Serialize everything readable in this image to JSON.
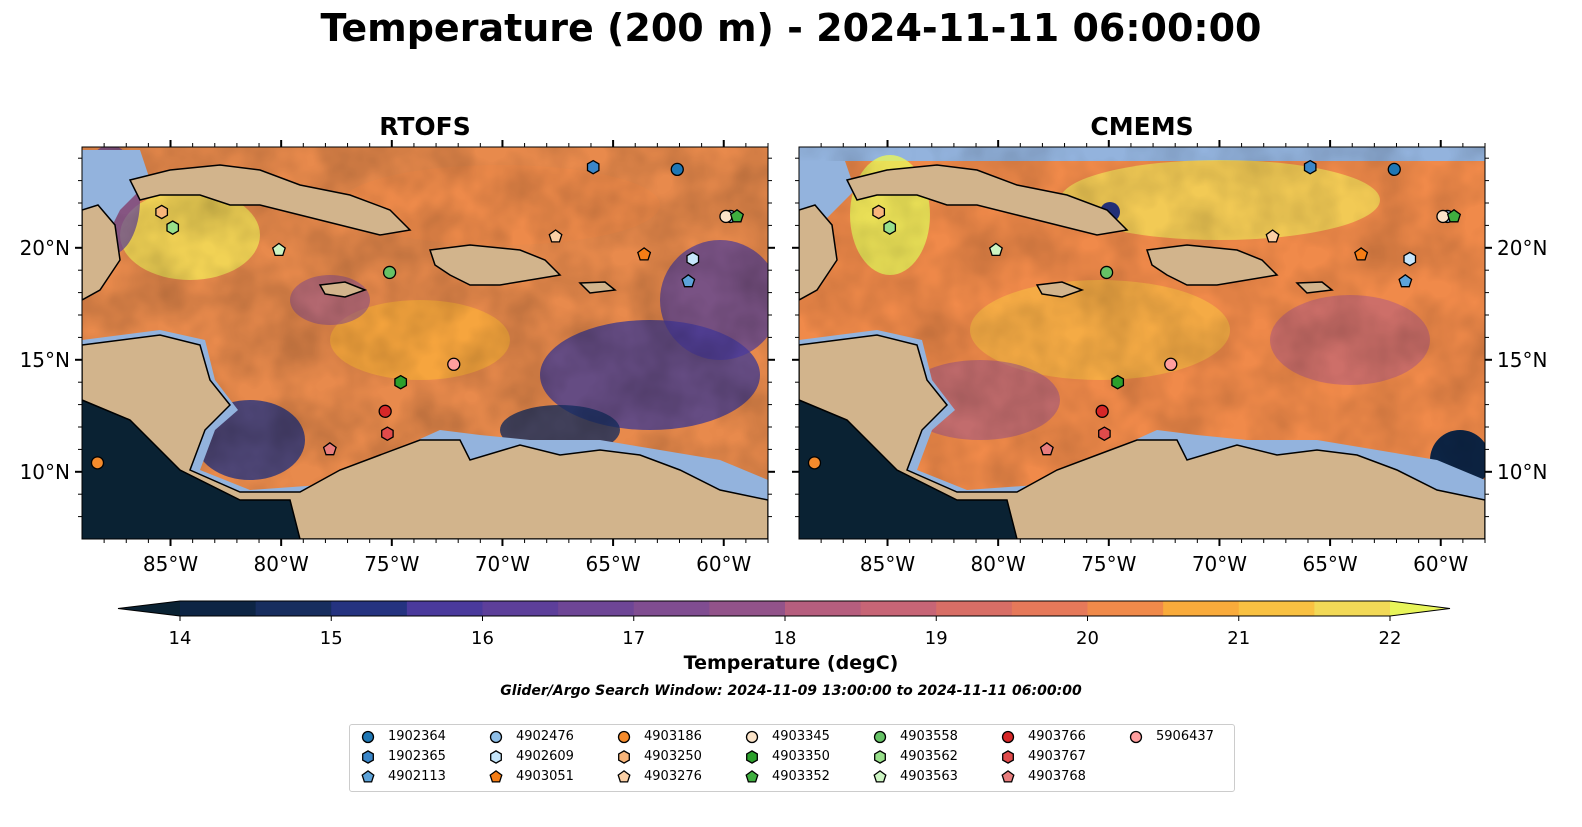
{
  "title": "Temperature (200 m) - 2024-11-11 06:00:00",
  "panels": [
    {
      "title": "RTOFS"
    },
    {
      "title": "CMEMS"
    }
  ],
  "lon_ticks": [
    "85°W",
    "80°W",
    "75°W",
    "70°W",
    "65°W",
    "60°W"
  ],
  "lat_ticks": [
    "20°N",
    "15°N",
    "10°N"
  ],
  "colorbar": {
    "label": "Temperature (degC)",
    "min": 14,
    "max": 22,
    "step": 0.5,
    "ticks": [
      "14",
      "15",
      "16",
      "17",
      "18",
      "19",
      "20",
      "21",
      "22"
    ],
    "colors": [
      "#0d2444",
      "#172d5e",
      "#253380",
      "#3a3796",
      "#4a3a9c",
      "#5d3f9a",
      "#6e4696",
      "#804d91",
      "#92538a",
      "#a45985",
      "#b65e7e",
      "#c76576",
      "#d86e66",
      "#e6795a",
      "#f08a4a",
      "#f79a40",
      "#f9ab3b",
      "#f9c142",
      "#f2d957"
    ],
    "over_color": "#e8f55a",
    "under_color": "#0a2233"
  },
  "search_window": "Glider/Argo Search Window: 2024-11-09 13:00:00 to 2024-11-11 06:00:00",
  "floats": [
    {
      "id": "1902364",
      "marker": "circle",
      "color": "#1f77b4",
      "lon": -62.1,
      "lat": 23.5
    },
    {
      "id": "1902365",
      "marker": "hexagon",
      "color": "#3a86c8",
      "lon": -65.9,
      "lat": 23.6
    },
    {
      "id": "4902113",
      "marker": "pentagon",
      "color": "#5da3d9",
      "lon": -61.6,
      "lat": 18.5
    },
    {
      "id": "4902476",
      "marker": "circle",
      "color": "#8fbfe8",
      "lon": -59.7,
      "lat": 21.4
    },
    {
      "id": "4902609",
      "marker": "hexagon",
      "color": "#c6e6fb",
      "lon": -61.4,
      "lat": 19.5
    },
    {
      "id": "4903051",
      "marker": "pentagon",
      "color": "#f57d15",
      "lon": -63.6,
      "lat": 19.7
    },
    {
      "id": "4903186",
      "marker": "circle",
      "color": "#f58b2c",
      "lon": -88.3,
      "lat": 10.4
    },
    {
      "id": "4903250",
      "marker": "hexagon",
      "color": "#f8b57a",
      "lon": -85.4,
      "lat": 21.6
    },
    {
      "id": "4903276",
      "marker": "pentagon",
      "color": "#fbd0a6",
      "lon": -67.6,
      "lat": 20.5
    },
    {
      "id": "4903345",
      "marker": "circle",
      "color": "#fbe3c8",
      "lon": -59.9,
      "lat": 21.4
    },
    {
      "id": "4903350",
      "marker": "hexagon",
      "color": "#2ca02c",
      "lon": -74.6,
      "lat": 14.0
    },
    {
      "id": "4903352",
      "marker": "pentagon",
      "color": "#3fae3f",
      "lon": -59.4,
      "lat": 21.4
    },
    {
      "id": "4903558",
      "marker": "circle",
      "color": "#66c266",
      "lon": -75.1,
      "lat": 18.9
    },
    {
      "id": "4903562",
      "marker": "hexagon",
      "color": "#98df8a",
      "lon": -84.9,
      "lat": 20.9
    },
    {
      "id": "4903563",
      "marker": "pentagon",
      "color": "#cdf5c3",
      "lon": -80.1,
      "lat": 19.9
    },
    {
      "id": "4903766",
      "marker": "circle",
      "color": "#d62728",
      "lon": -75.3,
      "lat": 12.7
    },
    {
      "id": "4903767",
      "marker": "hexagon",
      "color": "#e04b4b",
      "lon": -75.2,
      "lat": 11.7
    },
    {
      "id": "4903768",
      "marker": "pentagon",
      "color": "#e87d7d",
      "lon": -77.8,
      "lat": 11.0
    },
    {
      "id": "5906437",
      "marker": "circle",
      "color": "#ff9e9e",
      "lon": -72.2,
      "lat": 14.8
    }
  ]
}
